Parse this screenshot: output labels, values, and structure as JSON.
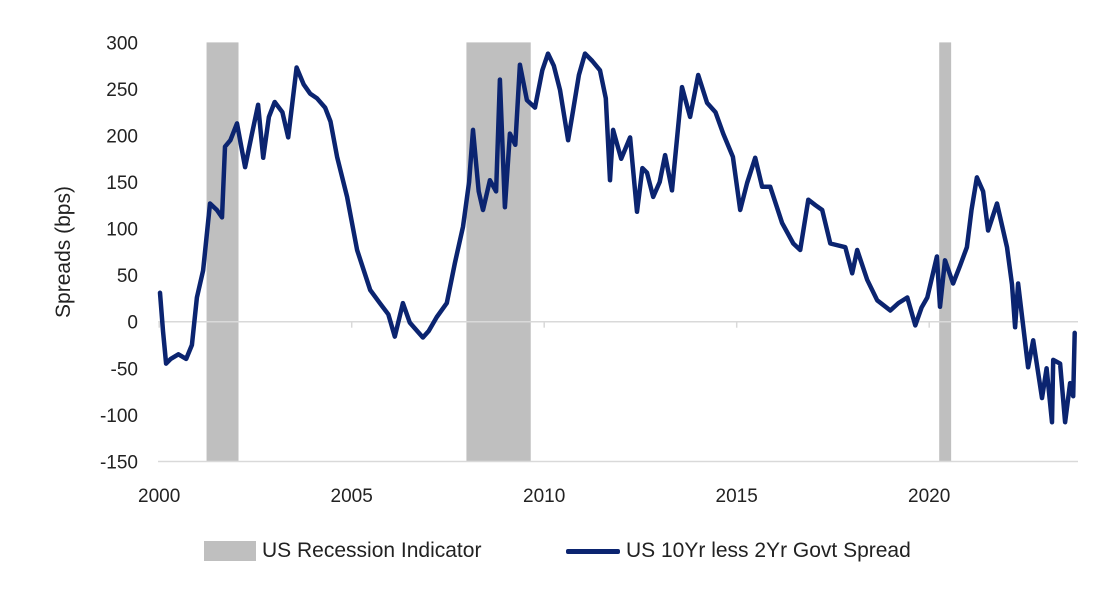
{
  "chart_data": {
    "type": "line",
    "title": "",
    "xlabel": "",
    "ylabel": "Spreads (bps)",
    "xlim": [
      2000,
      2023.8
    ],
    "ylim": [
      -150,
      300
    ],
    "yticks": [
      300,
      250,
      200,
      150,
      100,
      50,
      0,
      -50,
      -100,
      -150
    ],
    "xticks": [
      2000,
      2005,
      2010,
      2015,
      2020
    ],
    "grid": false,
    "legend_position": "bottom",
    "colors": {
      "line": "#0b2470",
      "recession": "#bfbfbf"
    },
    "recessions": {
      "name": "US Recession Indicator",
      "periods": [
        [
          2001.23,
          2002.06
        ],
        [
          2007.98,
          2009.65
        ],
        [
          2020.26,
          2020.57
        ]
      ]
    },
    "series": [
      {
        "name": "US 10Yr less 2Yr Govt Spread",
        "x": [
          2000.02,
          2000.1,
          2000.18,
          2000.3,
          2000.5,
          2000.7,
          2000.85,
          2000.98,
          2001.14,
          2001.32,
          2001.5,
          2001.63,
          2001.71,
          2001.85,
          2002.02,
          2002.23,
          2002.4,
          2002.57,
          2002.7,
          2002.85,
          2003.0,
          2003.2,
          2003.35,
          2003.57,
          2003.75,
          2003.92,
          2004.1,
          2004.31,
          2004.45,
          2004.62,
          2004.88,
          2005.14,
          2005.48,
          2005.73,
          2005.95,
          2006.12,
          2006.33,
          2006.51,
          2006.85,
          2007.0,
          2007.21,
          2007.47,
          2007.68,
          2007.89,
          2008.05,
          2008.15,
          2008.3,
          2008.41,
          2008.59,
          2008.75,
          2008.85,
          2008.98,
          2009.11,
          2009.25,
          2009.37,
          2009.55,
          2009.76,
          2009.95,
          2010.1,
          2010.25,
          2010.41,
          2010.62,
          2010.75,
          2010.9,
          2011.06,
          2011.25,
          2011.45,
          2011.6,
          2011.71,
          2011.79,
          2012.0,
          2012.23,
          2012.41,
          2012.55,
          2012.67,
          2012.83,
          2013.0,
          2013.14,
          2013.32,
          2013.58,
          2013.79,
          2014.0,
          2014.23,
          2014.45,
          2014.65,
          2014.9,
          2015.09,
          2015.27,
          2015.48,
          2015.66,
          2015.87,
          2016.18,
          2016.47,
          2016.65,
          2016.86,
          2017.05,
          2017.22,
          2017.43,
          2017.82,
          2018.0,
          2018.13,
          2018.39,
          2018.65,
          2018.99,
          2019.2,
          2019.43,
          2019.64,
          2019.8,
          2019.95,
          2020.2,
          2020.28,
          2020.41,
          2020.62,
          2020.8,
          2020.98,
          2021.1,
          2021.24,
          2021.4,
          2021.53,
          2021.76,
          2022.02,
          2022.15,
          2022.23,
          2022.31,
          2022.57,
          2022.7,
          2022.93,
          2023.05,
          2023.19,
          2023.22,
          2023.4,
          2023.53,
          2023.66,
          2023.74,
          2023.78
        ],
        "y": [
          31,
          -10,
          -45,
          -40,
          -35,
          -40,
          -25,
          26,
          55,
          127,
          120,
          112,
          188,
          195,
          213,
          166,
          200,
          233,
          176,
          220,
          236,
          225,
          198,
          273,
          255,
          245,
          240,
          230,
          215,
          177,
          134,
          77,
          34,
          20,
          8,
          -16,
          20,
          -1,
          -17,
          -10,
          5,
          20,
          63,
          102,
          150,
          206,
          140,
          120,
          152,
          140,
          260,
          123,
          202,
          190,
          276,
          238,
          230,
          270,
          288,
          275,
          249,
          195,
          227,
          265,
          288,
          280,
          270,
          240,
          152,
          206,
          175,
          198,
          118,
          165,
          160,
          134,
          150,
          179,
          141,
          252,
          220,
          265,
          235,
          225,
          202,
          177,
          120,
          149,
          176,
          145,
          145,
          106,
          84,
          77,
          131,
          125,
          120,
          84,
          80,
          52,
          77,
          45,
          23,
          12,
          20,
          26,
          -4,
          15,
          26,
          70,
          16,
          66,
          41,
          60,
          80,
          120,
          155,
          140,
          98,
          127,
          80,
          40,
          -6,
          41,
          -49,
          -20,
          -82,
          -50,
          -108,
          -41,
          -45,
          -108,
          -66,
          -80,
          -12
        ]
      }
    ]
  }
}
